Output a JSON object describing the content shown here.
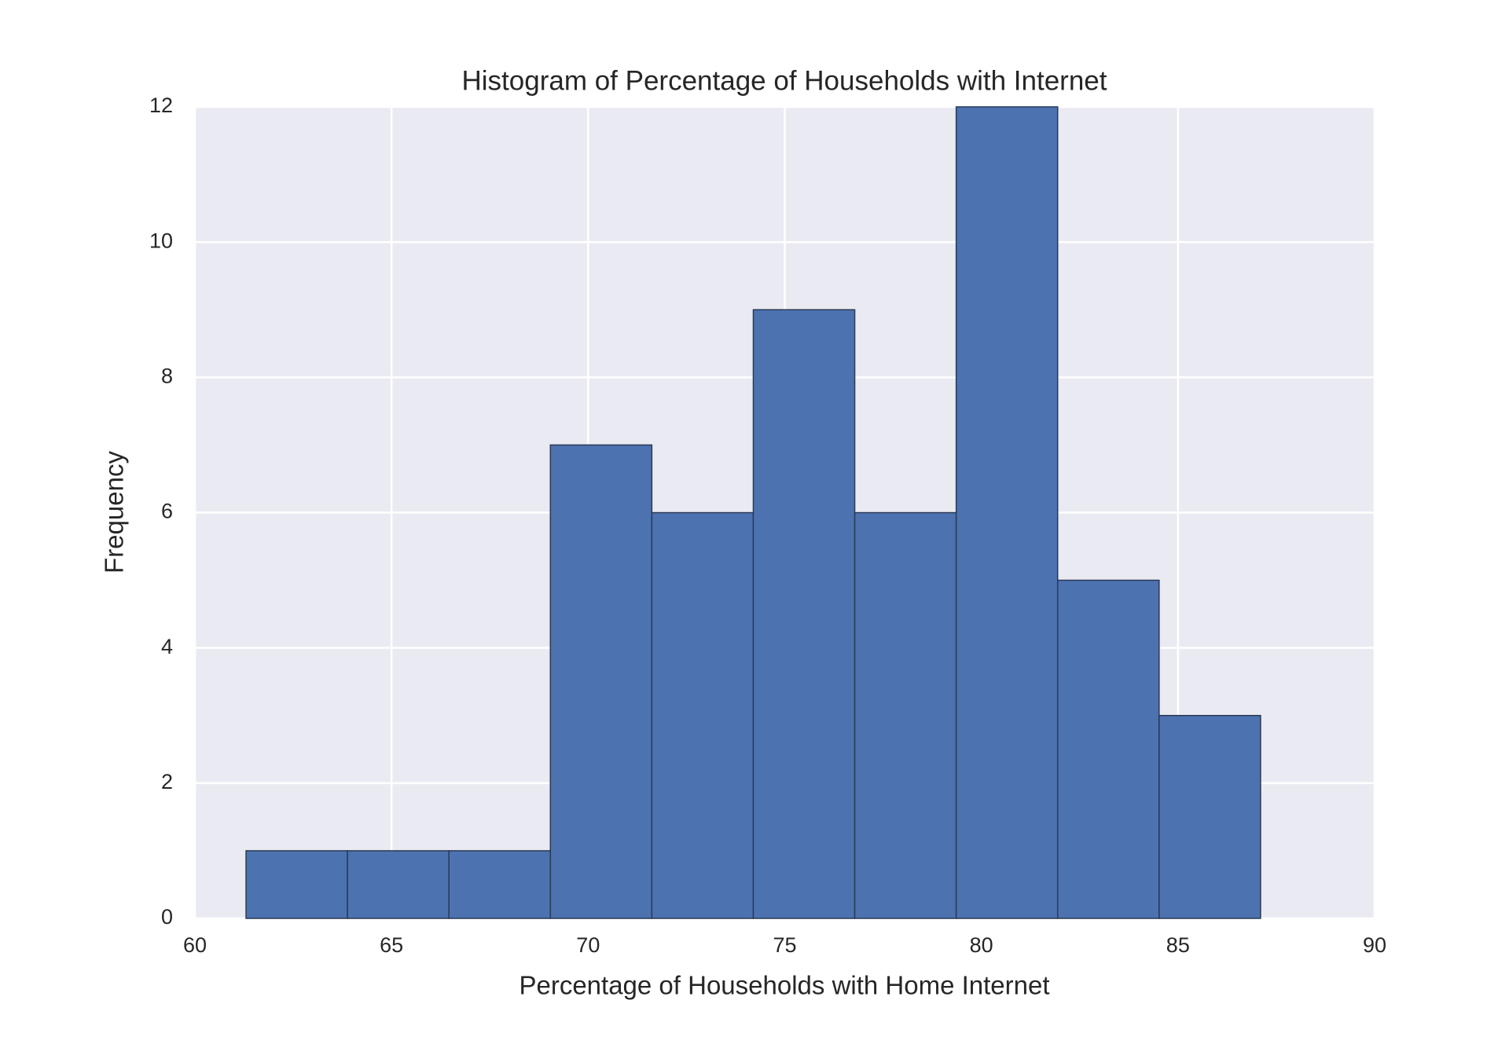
{
  "chart_data": {
    "type": "histogram",
    "title": "Histogram of Percentage of Households with Internet",
    "x_label": "Percentage of Households with Home Internet",
    "y_label": "Frequency",
    "bins": [
      61.3,
      63.88,
      66.46,
      69.04,
      71.62,
      74.2,
      76.78,
      79.36,
      81.94,
      84.52,
      87.1
    ],
    "values": [
      1,
      1,
      1,
      7,
      6,
      9,
      6,
      12,
      5,
      3
    ],
    "color": "#4c72b0",
    "xlim": [
      60,
      90
    ],
    "xticks": [
      60,
      65,
      70,
      75,
      80,
      85,
      90
    ],
    "ylim": [
      0,
      12
    ],
    "yticks": [
      0,
      2,
      4,
      6,
      8,
      10,
      12
    ],
    "grid": true
  }
}
